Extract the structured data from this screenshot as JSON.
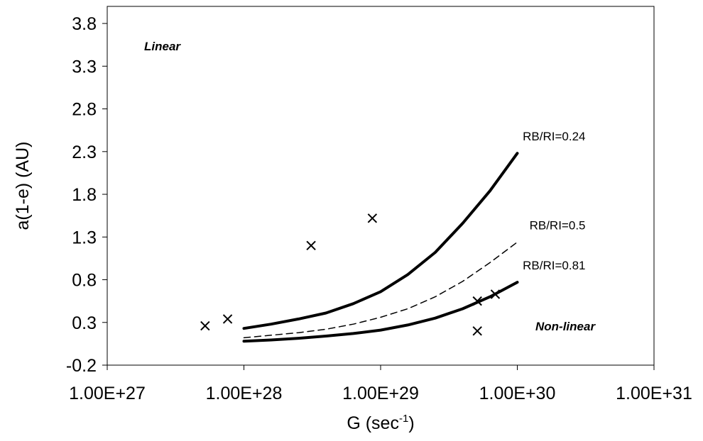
{
  "chart_data": {
    "type": "scatter",
    "title": "",
    "xlabel": "G (sec",
    "xlabel_sup": "-1",
    "xlabel_suffix": ")",
    "ylabel": "a(1-e) (AU)",
    "x_scale": "log",
    "xlim": [
      1e+27,
      1e+31
    ],
    "ylim": [
      -0.2,
      4.0
    ],
    "x_ticks": [
      1e+27,
      1e+28,
      1e+29,
      1e+30,
      1e+31
    ],
    "x_tick_labels": [
      "1.00E+27",
      "1.00E+28",
      "1.00E+29",
      "1.00E+30",
      "1.00E+31"
    ],
    "y_ticks": [
      -0.2,
      0.3,
      0.8,
      1.3,
      1.8,
      2.3,
      2.8,
      3.3,
      3.8
    ],
    "y_tick_labels": [
      "-0.2",
      "0.3",
      "0.8",
      "1.3",
      "1.8",
      "2.3",
      "2.8",
      "3.3",
      "3.8"
    ],
    "grid": false,
    "legend": "none",
    "series": [
      {
        "label": "RB/RI=0.24",
        "style": "solid-thick",
        "x": [
          1e+28,
          1.58e+28,
          2.51e+28,
          3.98e+28,
          6.31e+28,
          1e+29,
          1.58e+29,
          2.51e+29,
          3.98e+29,
          6.31e+29,
          1e+30
        ],
        "y": [
          0.23,
          0.28,
          0.34,
          0.41,
          0.52,
          0.66,
          0.86,
          1.12,
          1.46,
          1.84,
          2.28
        ]
      },
      {
        "label": "RB/RI=0.5",
        "style": "dashed",
        "x": [
          1e+28,
          1.58e+28,
          2.51e+28,
          3.98e+28,
          6.31e+28,
          1e+29,
          1.58e+29,
          2.51e+29,
          3.98e+29,
          6.31e+29,
          1e+30
        ],
        "y": [
          0.12,
          0.15,
          0.18,
          0.22,
          0.28,
          0.36,
          0.46,
          0.6,
          0.78,
          1.0,
          1.24
        ]
      },
      {
        "label": "RB/RI=0.81",
        "style": "solid-thick",
        "x": [
          1e+28,
          1.58e+28,
          2.51e+28,
          3.98e+28,
          6.31e+28,
          1e+29,
          1.58e+29,
          2.51e+29,
          3.98e+29,
          6.31e+29,
          1e+30
        ],
        "y": [
          0.08,
          0.095,
          0.115,
          0.14,
          0.17,
          0.21,
          0.27,
          0.35,
          0.46,
          0.6,
          0.77
        ]
      }
    ],
    "points": [
      {
        "x": 5.2e+27,
        "y": 0.26
      },
      {
        "x": 7.6e+27,
        "y": 0.34
      },
      {
        "x": 3.1e+28,
        "y": 1.2
      },
      {
        "x": 8.7e+28,
        "y": 1.52
      },
      {
        "x": 5.1e+29,
        "y": 0.2
      },
      {
        "x": 5.1e+29,
        "y": 0.55
      },
      {
        "x": 6.9e+29,
        "y": 0.63
      }
    ],
    "annotations": {
      "linear": "Linear",
      "non_linear": "Non-linear"
    }
  }
}
